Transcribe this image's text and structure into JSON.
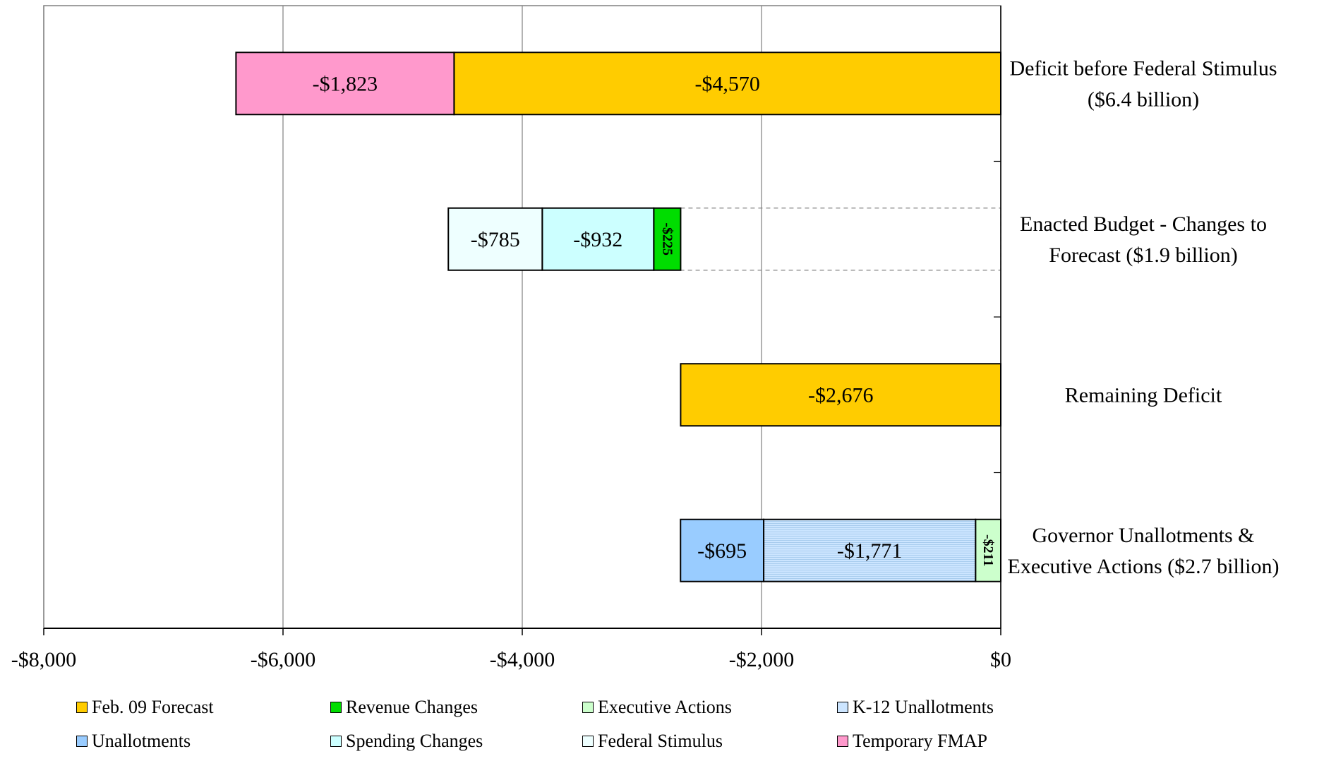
{
  "chart_data": {
    "type": "bar",
    "orientation": "horizontal-stacked",
    "xlim": [
      -8000,
      0
    ],
    "x_ticks": [
      -8000,
      -6000,
      -4000,
      -2000,
      0
    ],
    "x_tick_labels": [
      "-$8,000",
      "-$6,000",
      "-$4,000",
      "-$2,000",
      "$0"
    ],
    "grid": "vertical",
    "legend_position": "bottom",
    "categories": [
      {
        "label_lines": [
          "Deficit before Federal Stimulus",
          "($6.4 billion)"
        ],
        "segments": [
          {
            "series": "Feb. 09 Forecast",
            "value": -4570,
            "label": "-$4,570"
          },
          {
            "series": "Temporary FMAP",
            "value": -1823,
            "label": "-$1,823"
          }
        ]
      },
      {
        "label_lines": [
          "Enacted Budget - Changes to",
          "Forecast ($1.9 billion)"
        ],
        "invisible_offset": -2676,
        "segments": [
          {
            "series": "Revenue Changes",
            "value": -225,
            "label": "-$225",
            "vertical_label": true
          },
          {
            "series": "Spending Changes",
            "value": -932,
            "label": "-$932"
          },
          {
            "series": "Federal Stimulus",
            "value": -785,
            "label": "-$785"
          }
        ]
      },
      {
        "label_lines": [
          "Remaining Deficit"
        ],
        "segments": [
          {
            "series": "Feb. 09 Forecast",
            "value": -2676,
            "label": "-$2,676"
          }
        ]
      },
      {
        "label_lines": [
          "Governor Unallotments &",
          "Executive Actions ($2.7 billion)"
        ],
        "segments": [
          {
            "series": "Executive Actions",
            "value": -211,
            "label": "-$211",
            "vertical_label": true
          },
          {
            "series": "K-12 Unallotments",
            "value": -1771,
            "label": "-$1,771"
          },
          {
            "series": "Unallotments",
            "value": -695,
            "label": "-$695"
          }
        ]
      }
    ],
    "legend": [
      {
        "name": "Feb. 09 Forecast",
        "color": "#FFCC00"
      },
      {
        "name": "Revenue Changes",
        "color": "#00DD00"
      },
      {
        "name": "Executive Actions",
        "color": "#CCFFCC"
      },
      {
        "name": "K-12 Unallotments",
        "color": "#CCE5FF"
      },
      {
        "name": "Unallotments",
        "color": "#99CCFF"
      },
      {
        "name": "Spending Changes",
        "color": "#CCFFFF"
      },
      {
        "name": "Federal Stimulus",
        "color": "#EEFFFF"
      },
      {
        "name": "Temporary FMAP",
        "color": "#FF99CC"
      }
    ]
  }
}
